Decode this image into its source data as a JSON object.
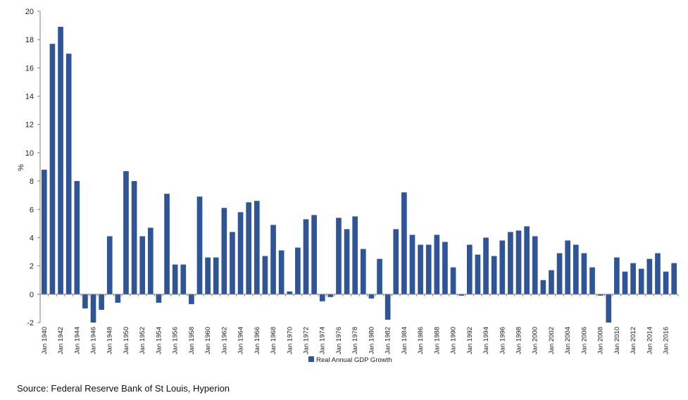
{
  "chart_data": {
    "type": "bar",
    "title": "",
    "xlabel": "",
    "ylabel": "%",
    "ylim": [
      -2,
      20
    ],
    "yticks": [
      -2,
      0,
      2,
      4,
      6,
      8,
      10,
      12,
      14,
      16,
      18,
      20
    ],
    "grid": false,
    "legend_position": "bottom-center",
    "bar_color": "#2F5597",
    "x_tick_labels": [
      "Jan 1940",
      "Jan 1942",
      "Jan 1944",
      "Jan 1946",
      "Jan 1948",
      "Jan 1950",
      "Jan 1952",
      "Jan 1954",
      "Jan 1956",
      "Jan 1958",
      "Jan 1960",
      "Jan 1962",
      "Jan 1964",
      "Jan 1966",
      "Jan 1968",
      "Jan 1970",
      "Jan 1972",
      "Jan 1974",
      "Jan 1976",
      "Jan 1978",
      "Jan 1980",
      "Jan 1982",
      "Jan 1984",
      "Jan 1986",
      "Jan 1988",
      "Jan 1990",
      "Jan 1992",
      "Jan 1994",
      "Jan 1996",
      "Jan 1998",
      "Jan 2000",
      "Jan 2002",
      "Jan 2004",
      "Jan 2006",
      "Jan 2008",
      "Jan 2010",
      "Jan 2012",
      "Jan 2014",
      "Jan 2016"
    ],
    "categories": [
      1940,
      1941,
      1942,
      1943,
      1944,
      1945,
      1946,
      1947,
      1948,
      1949,
      1950,
      1951,
      1952,
      1953,
      1954,
      1955,
      1956,
      1957,
      1958,
      1959,
      1960,
      1961,
      1962,
      1963,
      1964,
      1965,
      1966,
      1967,
      1968,
      1969,
      1970,
      1971,
      1972,
      1973,
      1974,
      1975,
      1976,
      1977,
      1978,
      1979,
      1980,
      1981,
      1982,
      1983,
      1984,
      1985,
      1986,
      1987,
      1988,
      1989,
      1990,
      1991,
      1992,
      1993,
      1994,
      1995,
      1996,
      1997,
      1998,
      1999,
      2000,
      2001,
      2002,
      2003,
      2004,
      2005,
      2006,
      2007,
      2008,
      2009,
      2010,
      2011,
      2012,
      2013,
      2014,
      2015,
      2016,
      2017
    ],
    "series": [
      {
        "name": "Real Annual GDP Growth",
        "values": [
          8.8,
          17.7,
          18.9,
          17.0,
          8.0,
          -1.0,
          -2.0,
          -1.1,
          4.1,
          -0.6,
          8.7,
          8.0,
          4.1,
          4.7,
          -0.6,
          7.1,
          2.1,
          2.1,
          -0.7,
          6.9,
          2.6,
          2.6,
          6.1,
          4.4,
          5.8,
          6.5,
          6.6,
          2.7,
          4.9,
          3.1,
          0.2,
          3.3,
          5.3,
          5.6,
          -0.5,
          -0.2,
          5.4,
          4.6,
          5.5,
          3.2,
          -0.3,
          2.5,
          -1.8,
          4.6,
          7.2,
          4.2,
          3.5,
          3.5,
          4.2,
          3.7,
          1.9,
          -0.1,
          3.5,
          2.8,
          4.0,
          2.7,
          3.8,
          4.4,
          4.5,
          4.8,
          4.1,
          1.0,
          1.7,
          2.9,
          3.8,
          3.5,
          2.9,
          1.9,
          -0.1,
          -2.5,
          2.6,
          1.6,
          2.2,
          1.8,
          2.5,
          2.9,
          1.6,
          2.2
        ]
      }
    ]
  },
  "source_note": "Source: Federal Reserve Bank of St Louis, Hyperion"
}
